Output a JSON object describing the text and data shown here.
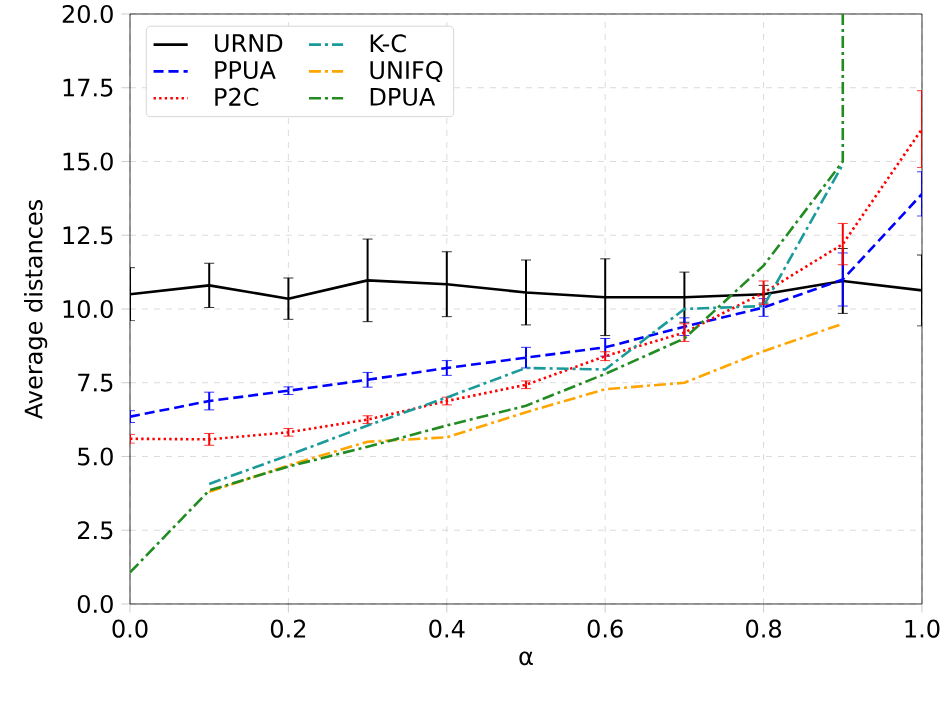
{
  "chart_data": {
    "type": "line",
    "xlabel": "α",
    "ylabel": "Average distances",
    "x": [
      0.0,
      0.1,
      0.2,
      0.3,
      0.4,
      0.5,
      0.6,
      0.7,
      0.8,
      0.9,
      1.0
    ],
    "series": [
      {
        "name": "URND",
        "color": "#000000",
        "line_style": "solid",
        "values": [
          10.5,
          10.8,
          10.35,
          10.97,
          10.84,
          10.56,
          10.4,
          10.4,
          10.5,
          10.95,
          10.63
        ],
        "errors": [
          0.9,
          0.75,
          0.7,
          1.4,
          1.1,
          1.1,
          1.3,
          0.85,
          0.3,
          1.1,
          1.2
        ]
      },
      {
        "name": "PPUA",
        "color": "#0000ff",
        "line_style": "dashed",
        "values": [
          6.35,
          6.88,
          7.23,
          7.6,
          8.0,
          8.35,
          8.7,
          9.4,
          10.05,
          11.0,
          13.9
        ],
        "errors": [
          0.2,
          0.3,
          0.13,
          0.25,
          0.25,
          0.35,
          0.3,
          0.3,
          0.3,
          0.9,
          0.75
        ]
      },
      {
        "name": "P2C",
        "color": "#ff0000",
        "line_style": "dotted",
        "values": [
          5.6,
          5.58,
          5.82,
          6.25,
          6.88,
          7.43,
          8.4,
          9.2,
          10.55,
          12.2,
          16.1
        ],
        "errors": [
          0.15,
          0.2,
          0.13,
          0.13,
          0.13,
          0.13,
          0.15,
          0.3,
          0.4,
          0.7,
          1.3
        ]
      },
      {
        "name": "K-C",
        "color": "#1a9a9a",
        "line_style": "dashdot",
        "x": [
          0.1,
          0.2,
          0.3,
          0.4,
          0.5,
          0.6,
          0.7,
          0.8,
          0.9
        ],
        "values": [
          4.07,
          5.04,
          6.05,
          7.0,
          8.0,
          7.95,
          10.0,
          10.1,
          14.9
        ]
      },
      {
        "name": "UNIFQ",
        "color": "#ffa500",
        "line_style": "dashdot",
        "x": [
          0.1,
          0.2,
          0.3,
          0.4,
          0.5,
          0.6,
          0.7,
          0.8,
          0.9
        ],
        "values": [
          3.8,
          4.7,
          5.5,
          5.65,
          6.5,
          7.28,
          7.5,
          8.57,
          9.5
        ]
      },
      {
        "name": "DPUA",
        "color": "#228b22",
        "line_style": "dashdot",
        "x": [
          0.0,
          0.1,
          0.2,
          0.3,
          0.4,
          0.5,
          0.6,
          0.7,
          0.8,
          0.9,
          0.9
        ],
        "values": [
          1.07,
          3.85,
          4.66,
          5.33,
          6.05,
          6.72,
          7.8,
          9.0,
          11.47,
          15.0,
          20.0
        ]
      }
    ],
    "xlim": [
      0.0,
      1.0
    ],
    "ylim": [
      0.0,
      20.0
    ],
    "xticks": [
      {
        "value": 0,
        "label": "0.0"
      },
      0.2,
      0.4,
      0.6,
      0.8,
      {
        "value": 1,
        "label": "1.0"
      }
    ],
    "yticks": [
      {
        "value": 0,
        "label": "0.0"
      },
      2.5,
      {
        "value": 5,
        "label": "5.0"
      },
      7.5,
      {
        "value": 10,
        "label": "10.0"
      },
      12.5,
      {
        "value": 15,
        "label": "15.0"
      },
      17.5,
      {
        "value": 20,
        "label": "20.0"
      }
    ],
    "grid": true,
    "legend": "top left",
    "marker": "none"
  }
}
